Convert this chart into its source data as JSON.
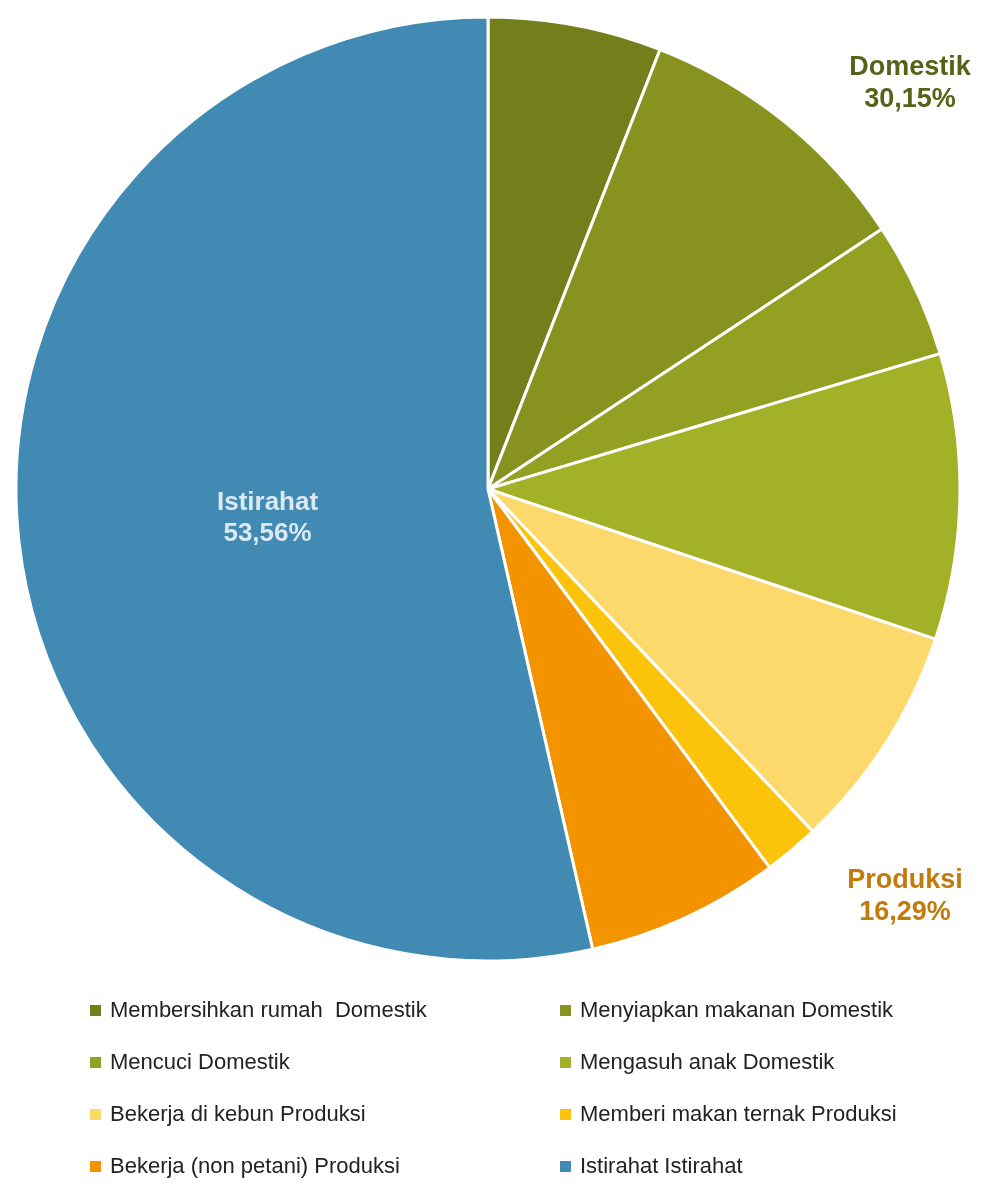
{
  "chart_data": {
    "type": "pie",
    "categories": [
      "Membersihkan rumah  Domestik",
      "Menyiapkan makanan Domestik",
      "Mencuci Domestik",
      "Mengasuh anak Domestik",
      "Bekerja di kebun Produksi",
      "Memberi makan ternak Produksi",
      "Bekerja (non petani) Produksi",
      "Istirahat Istirahat"
    ],
    "values": [
      5.94,
      9.78,
      4.65,
      9.78,
      7.77,
      1.9,
      6.62,
      53.56
    ],
    "colors": [
      "#737f1a",
      "#87921f",
      "#93a021",
      "#a2b127",
      "#fdd96b",
      "#fcc30b",
      "#f49300",
      "#418ab3"
    ],
    "value_labels": [
      null,
      null,
      null,
      null,
      null,
      null,
      null,
      "Istirahat\n53,56%"
    ],
    "annotations": [
      "Domestik\n30,15%",
      "Produksi\n16,29%"
    ],
    "legend": "bottom"
  }
}
